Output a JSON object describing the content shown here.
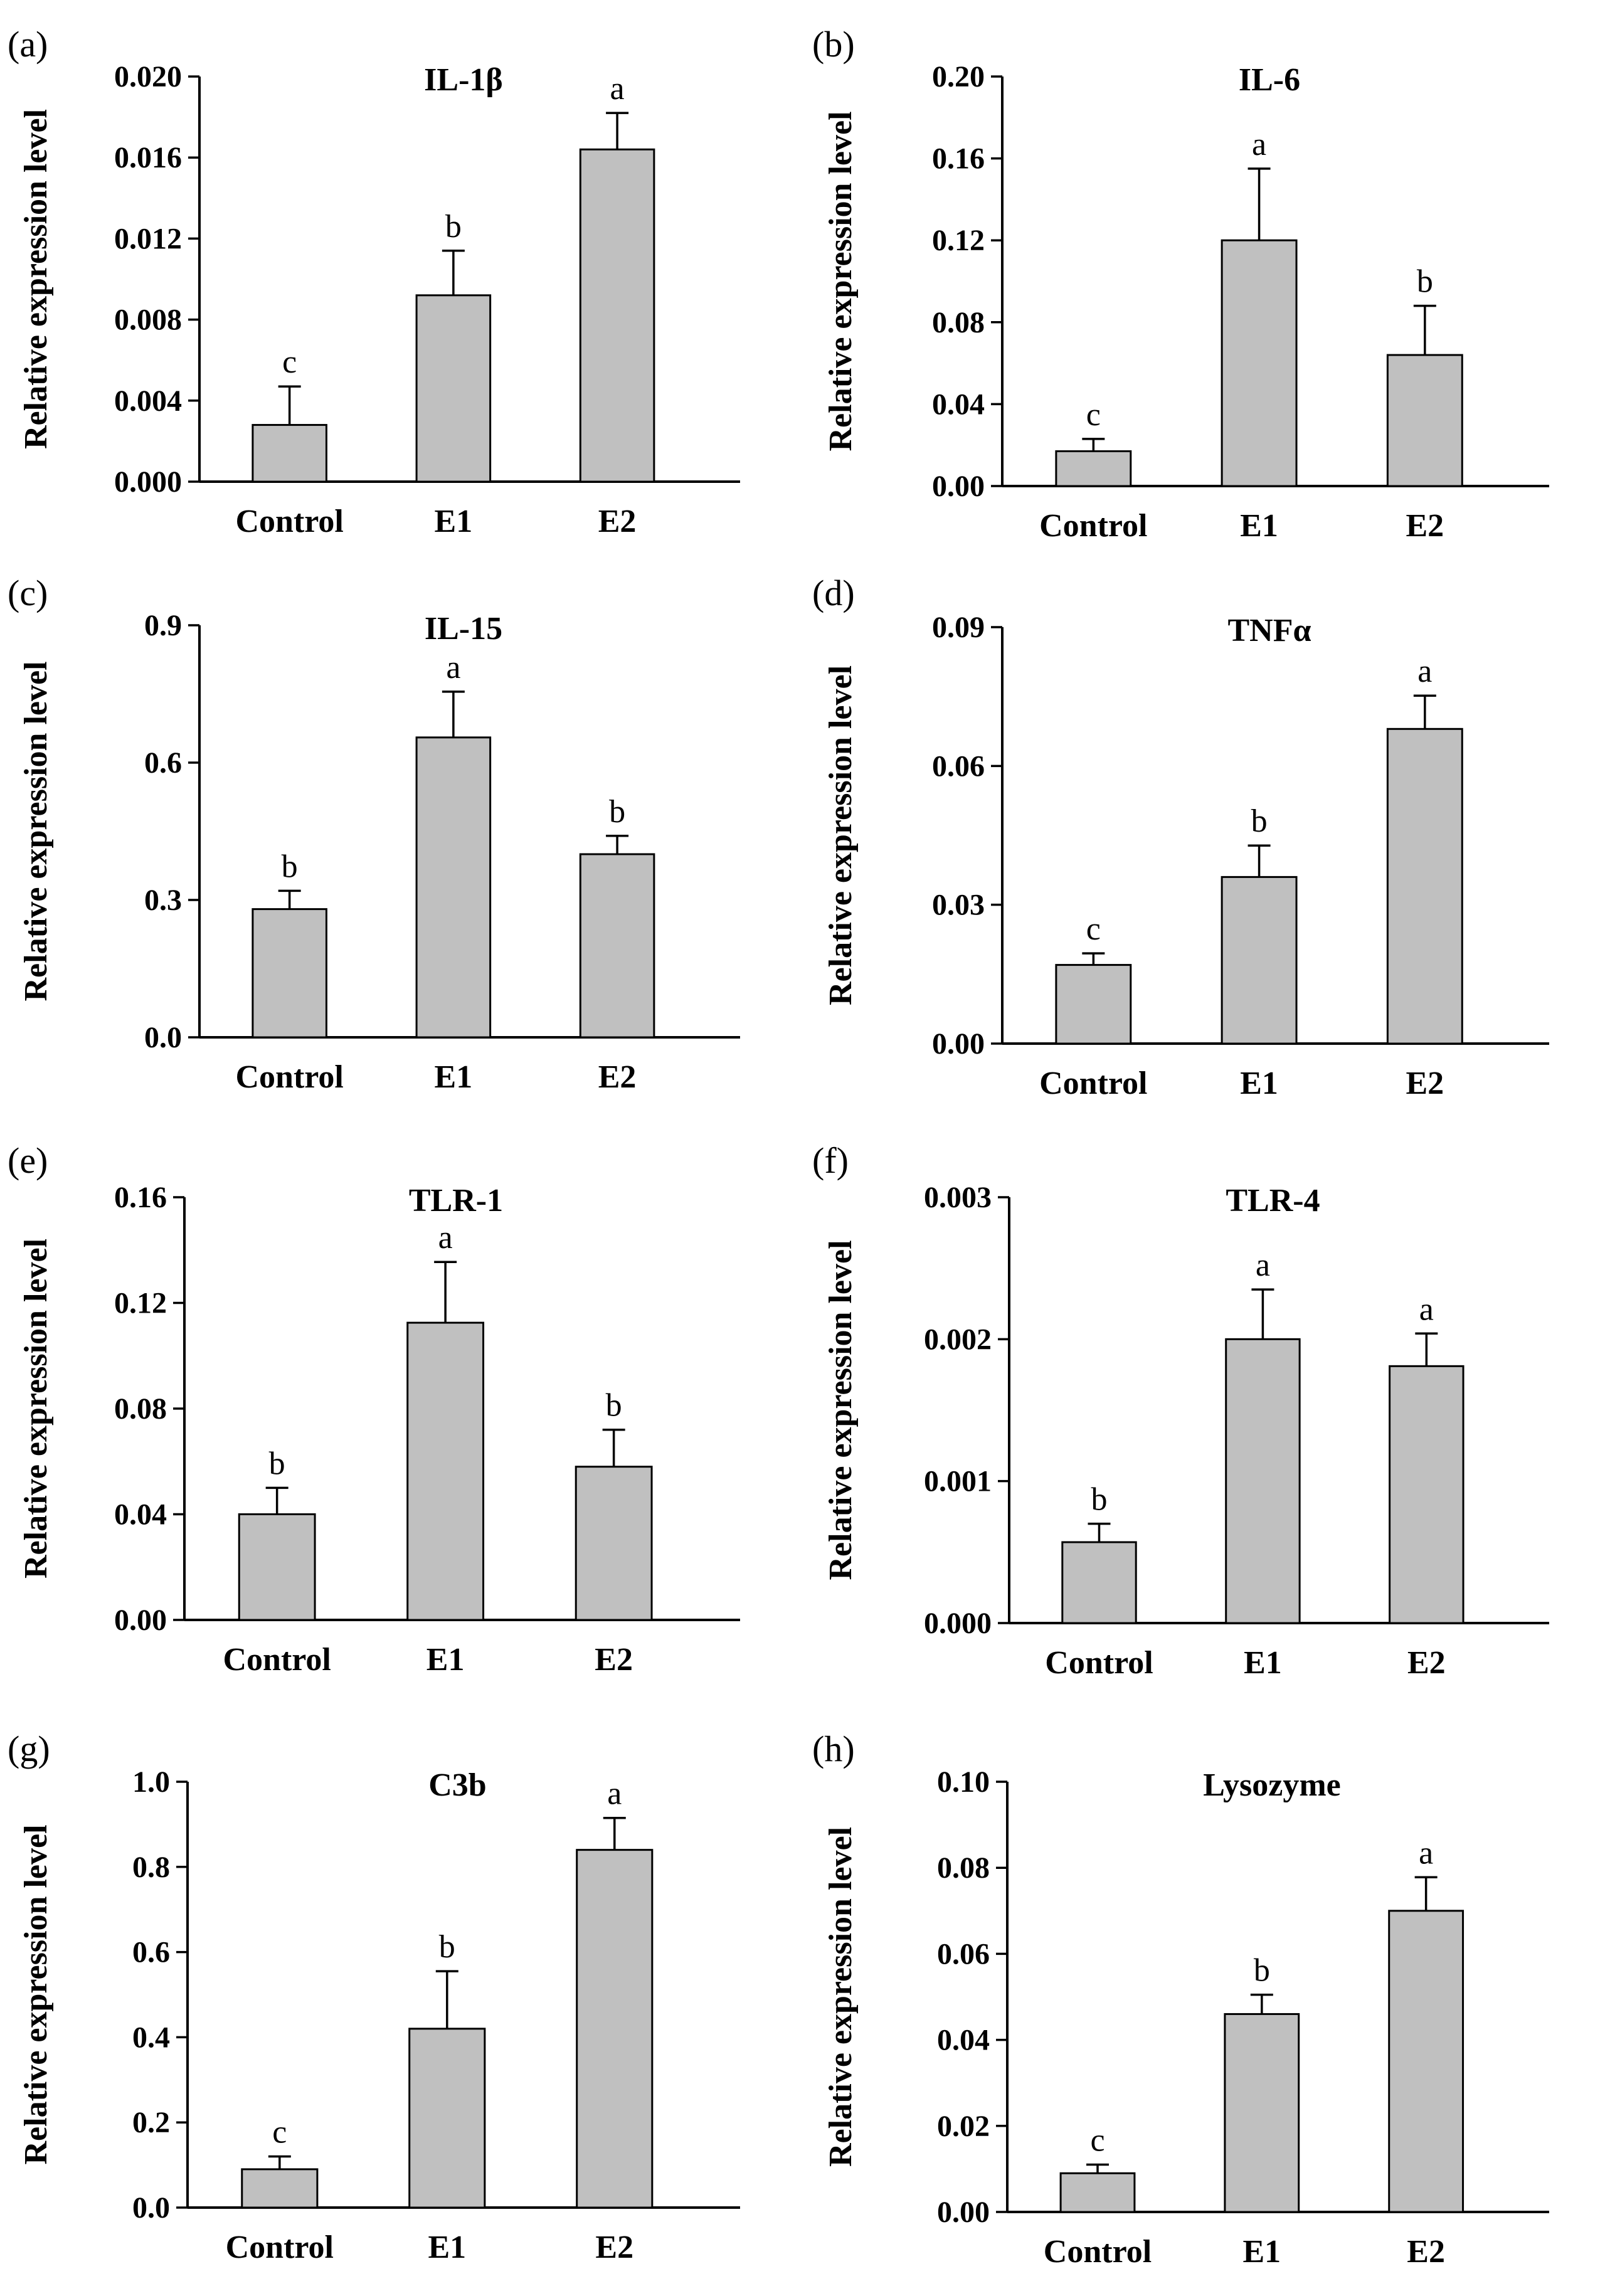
{
  "y_axis_label": "Relative expression level",
  "chart_data": [
    {
      "panel": "(a)",
      "type": "bar",
      "title": "IL-1β",
      "ylabel": "Relative expression level",
      "categories": [
        "Control",
        "E1",
        "E2"
      ],
      "values": [
        0.0028,
        0.0092,
        0.0164
      ],
      "errors": [
        0.0019,
        0.0022,
        0.0018
      ],
      "letters": [
        "c",
        "b",
        "a"
      ],
      "ylim": [
        0,
        0.02
      ],
      "yticks": [
        "0.000",
        "0.004",
        "0.008",
        "0.012",
        "0.016",
        "0.020"
      ]
    },
    {
      "panel": "(b)",
      "type": "bar",
      "title": "IL-6",
      "ylabel": "Relative expression level",
      "categories": [
        "Control",
        "E1",
        "E2"
      ],
      "values": [
        0.017,
        0.12,
        0.064
      ],
      "errors": [
        0.006,
        0.035,
        0.024
      ],
      "letters": [
        "c",
        "a",
        "b"
      ],
      "ylim": [
        0,
        0.2
      ],
      "yticks": [
        "0.00",
        "0.04",
        "0.08",
        "0.12",
        "0.16",
        "0.20"
      ]
    },
    {
      "panel": "(c)",
      "type": "bar",
      "title": "IL-15",
      "ylabel": "Relative expression level",
      "categories": [
        "Control",
        "E1",
        "E2"
      ],
      "values": [
        0.28,
        0.655,
        0.4
      ],
      "errors": [
        0.04,
        0.1,
        0.04
      ],
      "letters": [
        "b",
        "a",
        "b"
      ],
      "ylim": [
        0,
        0.9
      ],
      "yticks": [
        "0.0",
        "0.3",
        "0.6",
        "0.9"
      ]
    },
    {
      "panel": "(d)",
      "type": "bar",
      "title": "TNFα",
      "ylabel": "Relative expression level",
      "categories": [
        "Control",
        "E1",
        "E2"
      ],
      "values": [
        0.017,
        0.036,
        0.068
      ],
      "errors": [
        0.0025,
        0.0068,
        0.0072
      ],
      "letters": [
        "c",
        "b",
        "a"
      ],
      "ylim": [
        0,
        0.09
      ],
      "yticks": [
        "0.00",
        "0.03",
        "0.06",
        "0.09"
      ]
    },
    {
      "panel": "(e)",
      "type": "bar",
      "title": "TLR-1",
      "ylabel": "Relative expression level",
      "categories": [
        "Control",
        "E1",
        "E2"
      ],
      "values": [
        0.04,
        0.1125,
        0.058
      ],
      "errors": [
        0.01,
        0.023,
        0.014
      ],
      "letters": [
        "b",
        "a",
        "b"
      ],
      "ylim": [
        0,
        0.16
      ],
      "yticks": [
        "0.00",
        "0.04",
        "0.08",
        "0.12",
        "0.16"
      ]
    },
    {
      "panel": "(f)",
      "type": "bar",
      "title": "TLR-4",
      "ylabel": "Relative expression level",
      "categories": [
        "Control",
        "E1",
        "E2"
      ],
      "values": [
        0.00057,
        0.002,
        0.00181
      ],
      "errors": [
        0.00013,
        0.00035,
        0.00023
      ],
      "letters": [
        "b",
        "a",
        "a"
      ],
      "ylim": [
        0,
        0.003
      ],
      "yticks": [
        "0.000",
        "0.001",
        "0.002",
        "0.003"
      ]
    },
    {
      "panel": "(g)",
      "type": "bar",
      "title": "C3b",
      "ylabel": "Relative expression level",
      "categories": [
        "Control",
        "E1",
        "E2"
      ],
      "values": [
        0.09,
        0.42,
        0.84
      ],
      "errors": [
        0.03,
        0.135,
        0.075
      ],
      "letters": [
        "c",
        "b",
        "a"
      ],
      "ylim": [
        0,
        1.0
      ],
      "yticks": [
        "0.0",
        "0.2",
        "0.4",
        "0.6",
        "0.8",
        "1.0"
      ]
    },
    {
      "panel": "(h)",
      "type": "bar",
      "title": "Lysozyme",
      "ylabel": "Relative expression level",
      "categories": [
        "Control",
        "E1",
        "E2"
      ],
      "values": [
        0.009,
        0.046,
        0.07
      ],
      "errors": [
        0.002,
        0.0045,
        0.0078
      ],
      "letters": [
        "c",
        "b",
        "a"
      ],
      "ylim": [
        0,
        0.1
      ],
      "yticks": [
        "0.00",
        "0.02",
        "0.04",
        "0.06",
        "0.08",
        "0.10"
      ]
    }
  ]
}
